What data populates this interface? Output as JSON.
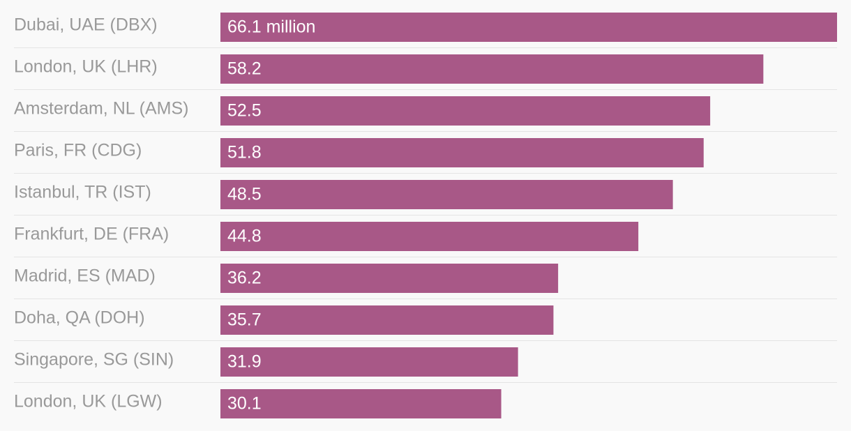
{
  "chart_data": {
    "type": "bar",
    "orientation": "horizontal",
    "title": "",
    "xlabel": "",
    "ylabel": "",
    "unit_suffix_first": " million",
    "categories": [
      "Dubai, UAE (DBX)",
      "London, UK (LHR)",
      "Amsterdam, NL (AMS)",
      "Paris, FR (CDG)",
      "Istanbul, TR (IST)",
      "Frankfurt, DE (FRA)",
      "Madrid, ES (MAD)",
      "Doha, QA (DOH)",
      "Singapore, SG (SIN)",
      "London, UK (LGW)"
    ],
    "values": [
      66.1,
      58.2,
      52.5,
      51.8,
      48.5,
      44.8,
      36.2,
      35.7,
      31.9,
      30.1
    ],
    "value_labels": [
      "66.1 million",
      "58.2",
      "52.5",
      "51.8",
      "48.5",
      "44.8",
      "36.2",
      "35.7",
      "31.9",
      "30.1"
    ],
    "xlim": [
      0,
      66.1
    ],
    "grid": false,
    "legend": "none"
  },
  "colors": {
    "bar": "#a85887",
    "label": "#999999",
    "value_text": "#ffffff",
    "divider": "#e4e4e4",
    "background": "#f9f9f9"
  }
}
